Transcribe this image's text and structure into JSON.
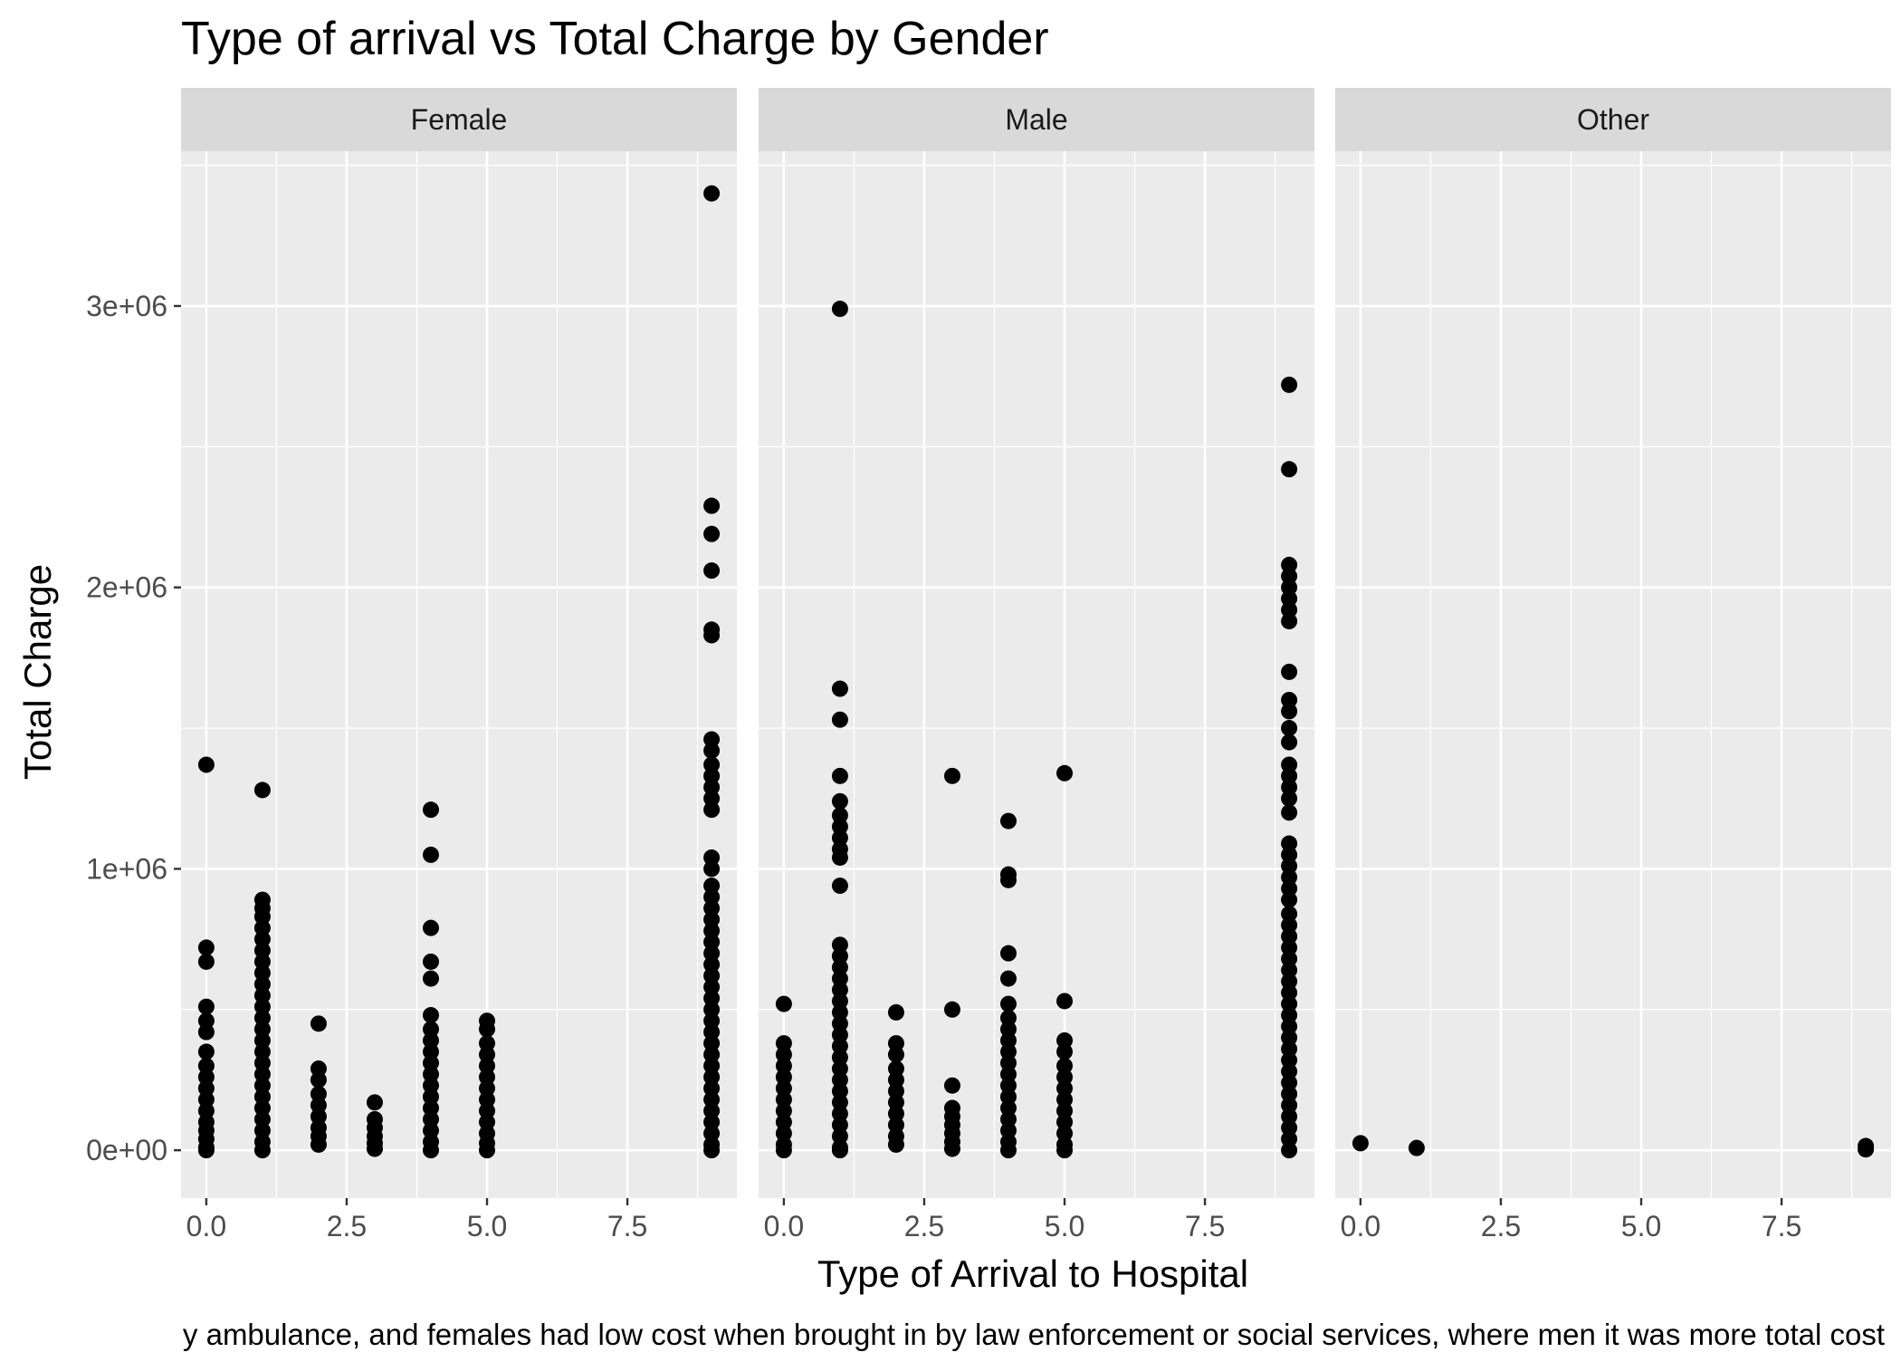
{
  "chart_data": {
    "type": "scatter",
    "title": "Type of arrival vs Total Charge by Gender",
    "xlabel": "Type of Arrival to Hospital",
    "ylabel": "Total Charge",
    "caption": "y ambulance, and females had low cost when brought in by law enforcement or social services, where men it was more total cost",
    "xlim": [
      -0.45,
      9.45
    ],
    "ylim": [
      -170000,
      3550000
    ],
    "x_ticks": [
      0,
      2.5,
      5,
      7.5
    ],
    "x_tick_labels": [
      "0.0",
      "2.5",
      "5.0",
      "7.5"
    ],
    "y_ticks": [
      0,
      1000000,
      2000000,
      3000000
    ],
    "y_tick_labels": [
      "0e+00",
      "1e+06",
      "2e+06",
      "3e+06"
    ],
    "grid": true,
    "colors": {
      "panel_bg": "#ebebeb",
      "strip_bg": "#d9d9d9",
      "grid": "#ffffff",
      "point": "#000000",
      "text": "#000000",
      "axis_text": "#4d4d4d"
    },
    "panels": [
      {
        "name": "Female",
        "points": [
          {
            "x": 0,
            "y": 1370000
          },
          {
            "x": 0,
            "y": 720000
          },
          {
            "x": 0,
            "y": 670000
          },
          {
            "x": 0,
            "y": 510000
          },
          {
            "x": 0,
            "y": 460000
          },
          {
            "x": 0,
            "y": 420000
          },
          {
            "x": 0,
            "y": 350000
          },
          {
            "x": 0,
            "y": 300000
          },
          {
            "x": 0,
            "y": 260000
          },
          {
            "x": 0,
            "y": 220000
          },
          {
            "x": 0,
            "y": 180000
          },
          {
            "x": 0,
            "y": 140000
          },
          {
            "x": 0,
            "y": 100000
          },
          {
            "x": 0,
            "y": 70000
          },
          {
            "x": 0,
            "y": 40000
          },
          {
            "x": 0,
            "y": 10000
          },
          {
            "x": 0,
            "y": 0
          },
          {
            "x": 1,
            "y": 1280000
          },
          {
            "x": 1,
            "y": 890000
          },
          {
            "x": 1,
            "y": 860000
          },
          {
            "x": 1,
            "y": 830000
          },
          {
            "x": 1,
            "y": 790000
          },
          {
            "x": 1,
            "y": 750000
          },
          {
            "x": 1,
            "y": 710000
          },
          {
            "x": 1,
            "y": 670000
          },
          {
            "x": 1,
            "y": 630000
          },
          {
            "x": 1,
            "y": 590000
          },
          {
            "x": 1,
            "y": 550000
          },
          {
            "x": 1,
            "y": 510000
          },
          {
            "x": 1,
            "y": 470000
          },
          {
            "x": 1,
            "y": 430000
          },
          {
            "x": 1,
            "y": 390000
          },
          {
            "x": 1,
            "y": 350000
          },
          {
            "x": 1,
            "y": 310000
          },
          {
            "x": 1,
            "y": 270000
          },
          {
            "x": 1,
            "y": 230000
          },
          {
            "x": 1,
            "y": 190000
          },
          {
            "x": 1,
            "y": 150000
          },
          {
            "x": 1,
            "y": 110000
          },
          {
            "x": 1,
            "y": 70000
          },
          {
            "x": 1,
            "y": 30000
          },
          {
            "x": 1,
            "y": 0
          },
          {
            "x": 2,
            "y": 450000
          },
          {
            "x": 2,
            "y": 290000
          },
          {
            "x": 2,
            "y": 250000
          },
          {
            "x": 2,
            "y": 200000
          },
          {
            "x": 2,
            "y": 160000
          },
          {
            "x": 2,
            "y": 120000
          },
          {
            "x": 2,
            "y": 80000
          },
          {
            "x": 2,
            "y": 50000
          },
          {
            "x": 2,
            "y": 20000
          },
          {
            "x": 3,
            "y": 170000
          },
          {
            "x": 3,
            "y": 110000
          },
          {
            "x": 3,
            "y": 80000
          },
          {
            "x": 3,
            "y": 50000
          },
          {
            "x": 3,
            "y": 25000
          },
          {
            "x": 3,
            "y": 5000
          },
          {
            "x": 4,
            "y": 1210000
          },
          {
            "x": 4,
            "y": 1050000
          },
          {
            "x": 4,
            "y": 790000
          },
          {
            "x": 4,
            "y": 670000
          },
          {
            "x": 4,
            "y": 610000
          },
          {
            "x": 4,
            "y": 480000
          },
          {
            "x": 4,
            "y": 430000
          },
          {
            "x": 4,
            "y": 390000
          },
          {
            "x": 4,
            "y": 350000
          },
          {
            "x": 4,
            "y": 310000
          },
          {
            "x": 4,
            "y": 270000
          },
          {
            "x": 4,
            "y": 230000
          },
          {
            "x": 4,
            "y": 190000
          },
          {
            "x": 4,
            "y": 150000
          },
          {
            "x": 4,
            "y": 110000
          },
          {
            "x": 4,
            "y": 70000
          },
          {
            "x": 4,
            "y": 30000
          },
          {
            "x": 4,
            "y": 0
          },
          {
            "x": 5,
            "y": 460000
          },
          {
            "x": 5,
            "y": 430000
          },
          {
            "x": 5,
            "y": 380000
          },
          {
            "x": 5,
            "y": 340000
          },
          {
            "x": 5,
            "y": 300000
          },
          {
            "x": 5,
            "y": 260000
          },
          {
            "x": 5,
            "y": 220000
          },
          {
            "x": 5,
            "y": 180000
          },
          {
            "x": 5,
            "y": 140000
          },
          {
            "x": 5,
            "y": 100000
          },
          {
            "x": 5,
            "y": 60000
          },
          {
            "x": 5,
            "y": 25000
          },
          {
            "x": 5,
            "y": 0
          },
          {
            "x": 9,
            "y": 3400000
          },
          {
            "x": 9,
            "y": 2290000
          },
          {
            "x": 9,
            "y": 2190000
          },
          {
            "x": 9,
            "y": 2060000
          },
          {
            "x": 9,
            "y": 1850000
          },
          {
            "x": 9,
            "y": 1830000
          },
          {
            "x": 9,
            "y": 1460000
          },
          {
            "x": 9,
            "y": 1420000
          },
          {
            "x": 9,
            "y": 1370000
          },
          {
            "x": 9,
            "y": 1330000
          },
          {
            "x": 9,
            "y": 1290000
          },
          {
            "x": 9,
            "y": 1250000
          },
          {
            "x": 9,
            "y": 1210000
          },
          {
            "x": 9,
            "y": 1040000
          },
          {
            "x": 9,
            "y": 1000000
          },
          {
            "x": 9,
            "y": 940000
          },
          {
            "x": 9,
            "y": 900000
          },
          {
            "x": 9,
            "y": 860000
          },
          {
            "x": 9,
            "y": 820000
          },
          {
            "x": 9,
            "y": 780000
          },
          {
            "x": 9,
            "y": 740000
          },
          {
            "x": 9,
            "y": 700000
          },
          {
            "x": 9,
            "y": 660000
          },
          {
            "x": 9,
            "y": 620000
          },
          {
            "x": 9,
            "y": 580000
          },
          {
            "x": 9,
            "y": 540000
          },
          {
            "x": 9,
            "y": 500000
          },
          {
            "x": 9,
            "y": 460000
          },
          {
            "x": 9,
            "y": 420000
          },
          {
            "x": 9,
            "y": 380000
          },
          {
            "x": 9,
            "y": 340000
          },
          {
            "x": 9,
            "y": 300000
          },
          {
            "x": 9,
            "y": 260000
          },
          {
            "x": 9,
            "y": 220000
          },
          {
            "x": 9,
            "y": 180000
          },
          {
            "x": 9,
            "y": 140000
          },
          {
            "x": 9,
            "y": 100000
          },
          {
            "x": 9,
            "y": 60000
          },
          {
            "x": 9,
            "y": 20000
          },
          {
            "x": 9,
            "y": 0
          }
        ]
      },
      {
        "name": "Male",
        "points": [
          {
            "x": 0,
            "y": 520000
          },
          {
            "x": 0,
            "y": 380000
          },
          {
            "x": 0,
            "y": 340000
          },
          {
            "x": 0,
            "y": 300000
          },
          {
            "x": 0,
            "y": 260000
          },
          {
            "x": 0,
            "y": 220000
          },
          {
            "x": 0,
            "y": 180000
          },
          {
            "x": 0,
            "y": 140000
          },
          {
            "x": 0,
            "y": 100000
          },
          {
            "x": 0,
            "y": 60000
          },
          {
            "x": 0,
            "y": 20000
          },
          {
            "x": 0,
            "y": 0
          },
          {
            "x": 1,
            "y": 2990000
          },
          {
            "x": 1,
            "y": 1640000
          },
          {
            "x": 1,
            "y": 1530000
          },
          {
            "x": 1,
            "y": 1330000
          },
          {
            "x": 1,
            "y": 1240000
          },
          {
            "x": 1,
            "y": 1190000
          },
          {
            "x": 1,
            "y": 1150000
          },
          {
            "x": 1,
            "y": 1110000
          },
          {
            "x": 1,
            "y": 1070000
          },
          {
            "x": 1,
            "y": 1040000
          },
          {
            "x": 1,
            "y": 940000
          },
          {
            "x": 1,
            "y": 730000
          },
          {
            "x": 1,
            "y": 690000
          },
          {
            "x": 1,
            "y": 650000
          },
          {
            "x": 1,
            "y": 610000
          },
          {
            "x": 1,
            "y": 570000
          },
          {
            "x": 1,
            "y": 530000
          },
          {
            "x": 1,
            "y": 490000
          },
          {
            "x": 1,
            "y": 450000
          },
          {
            "x": 1,
            "y": 410000
          },
          {
            "x": 1,
            "y": 370000
          },
          {
            "x": 1,
            "y": 330000
          },
          {
            "x": 1,
            "y": 290000
          },
          {
            "x": 1,
            "y": 250000
          },
          {
            "x": 1,
            "y": 210000
          },
          {
            "x": 1,
            "y": 170000
          },
          {
            "x": 1,
            "y": 130000
          },
          {
            "x": 1,
            "y": 90000
          },
          {
            "x": 1,
            "y": 50000
          },
          {
            "x": 1,
            "y": 10000
          },
          {
            "x": 1,
            "y": 0
          },
          {
            "x": 2,
            "y": 490000
          },
          {
            "x": 2,
            "y": 380000
          },
          {
            "x": 2,
            "y": 340000
          },
          {
            "x": 2,
            "y": 290000
          },
          {
            "x": 2,
            "y": 250000
          },
          {
            "x": 2,
            "y": 210000
          },
          {
            "x": 2,
            "y": 170000
          },
          {
            "x": 2,
            "y": 130000
          },
          {
            "x": 2,
            "y": 90000
          },
          {
            "x": 2,
            "y": 50000
          },
          {
            "x": 2,
            "y": 20000
          },
          {
            "x": 3,
            "y": 1330000
          },
          {
            "x": 3,
            "y": 500000
          },
          {
            "x": 3,
            "y": 230000
          },
          {
            "x": 3,
            "y": 150000
          },
          {
            "x": 3,
            "y": 120000
          },
          {
            "x": 3,
            "y": 90000
          },
          {
            "x": 3,
            "y": 60000
          },
          {
            "x": 3,
            "y": 30000
          },
          {
            "x": 3,
            "y": 5000
          },
          {
            "x": 4,
            "y": 1170000
          },
          {
            "x": 4,
            "y": 980000
          },
          {
            "x": 4,
            "y": 960000
          },
          {
            "x": 4,
            "y": 700000
          },
          {
            "x": 4,
            "y": 610000
          },
          {
            "x": 4,
            "y": 520000
          },
          {
            "x": 4,
            "y": 470000
          },
          {
            "x": 4,
            "y": 430000
          },
          {
            "x": 4,
            "y": 390000
          },
          {
            "x": 4,
            "y": 350000
          },
          {
            "x": 4,
            "y": 310000
          },
          {
            "x": 4,
            "y": 270000
          },
          {
            "x": 4,
            "y": 230000
          },
          {
            "x": 4,
            "y": 190000
          },
          {
            "x": 4,
            "y": 150000
          },
          {
            "x": 4,
            "y": 110000
          },
          {
            "x": 4,
            "y": 70000
          },
          {
            "x": 4,
            "y": 30000
          },
          {
            "x": 4,
            "y": 0
          },
          {
            "x": 5,
            "y": 1340000
          },
          {
            "x": 5,
            "y": 530000
          },
          {
            "x": 5,
            "y": 390000
          },
          {
            "x": 5,
            "y": 350000
          },
          {
            "x": 5,
            "y": 300000
          },
          {
            "x": 5,
            "y": 260000
          },
          {
            "x": 5,
            "y": 220000
          },
          {
            "x": 5,
            "y": 180000
          },
          {
            "x": 5,
            "y": 140000
          },
          {
            "x": 5,
            "y": 100000
          },
          {
            "x": 5,
            "y": 60000
          },
          {
            "x": 5,
            "y": 20000
          },
          {
            "x": 5,
            "y": 0
          },
          {
            "x": 9,
            "y": 2720000
          },
          {
            "x": 9,
            "y": 2420000
          },
          {
            "x": 9,
            "y": 2080000
          },
          {
            "x": 9,
            "y": 2040000
          },
          {
            "x": 9,
            "y": 2000000
          },
          {
            "x": 9,
            "y": 1960000
          },
          {
            "x": 9,
            "y": 1920000
          },
          {
            "x": 9,
            "y": 1880000
          },
          {
            "x": 9,
            "y": 1700000
          },
          {
            "x": 9,
            "y": 1600000
          },
          {
            "x": 9,
            "y": 1560000
          },
          {
            "x": 9,
            "y": 1500000
          },
          {
            "x": 9,
            "y": 1450000
          },
          {
            "x": 9,
            "y": 1370000
          },
          {
            "x": 9,
            "y": 1330000
          },
          {
            "x": 9,
            "y": 1290000
          },
          {
            "x": 9,
            "y": 1250000
          },
          {
            "x": 9,
            "y": 1200000
          },
          {
            "x": 9,
            "y": 1090000
          },
          {
            "x": 9,
            "y": 1050000
          },
          {
            "x": 9,
            "y": 1010000
          },
          {
            "x": 9,
            "y": 970000
          },
          {
            "x": 9,
            "y": 930000
          },
          {
            "x": 9,
            "y": 890000
          },
          {
            "x": 9,
            "y": 840000
          },
          {
            "x": 9,
            "y": 800000
          },
          {
            "x": 9,
            "y": 760000
          },
          {
            "x": 9,
            "y": 720000
          },
          {
            "x": 9,
            "y": 680000
          },
          {
            "x": 9,
            "y": 640000
          },
          {
            "x": 9,
            "y": 600000
          },
          {
            "x": 9,
            "y": 560000
          },
          {
            "x": 9,
            "y": 520000
          },
          {
            "x": 9,
            "y": 480000
          },
          {
            "x": 9,
            "y": 440000
          },
          {
            "x": 9,
            "y": 400000
          },
          {
            "x": 9,
            "y": 360000
          },
          {
            "x": 9,
            "y": 320000
          },
          {
            "x": 9,
            "y": 280000
          },
          {
            "x": 9,
            "y": 240000
          },
          {
            "x": 9,
            "y": 200000
          },
          {
            "x": 9,
            "y": 160000
          },
          {
            "x": 9,
            "y": 120000
          },
          {
            "x": 9,
            "y": 80000
          },
          {
            "x": 9,
            "y": 40000
          },
          {
            "x": 9,
            "y": 0
          }
        ]
      },
      {
        "name": "Other",
        "points": [
          {
            "x": 0,
            "y": 25000
          },
          {
            "x": 1,
            "y": 8000
          },
          {
            "x": 9,
            "y": 15000
          },
          {
            "x": 9,
            "y": 3000
          }
        ]
      }
    ]
  }
}
